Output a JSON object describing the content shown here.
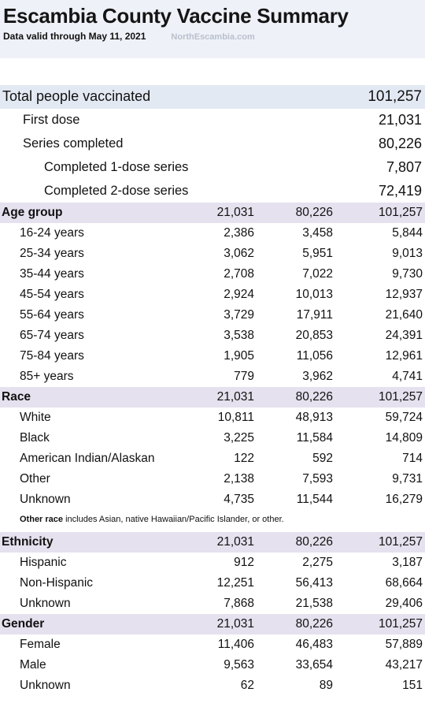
{
  "header": {
    "title": "Escambia County Vaccine Summary",
    "valid": "Data valid through May 11, 2021",
    "source": "NorthEscambia.com"
  },
  "summary": {
    "total": {
      "label": "Total people vaccinated",
      "value": "101,257"
    },
    "first": {
      "label": "First dose",
      "value": "21,031"
    },
    "series": {
      "label": "Series completed",
      "value": "80,226"
    },
    "one_dose": {
      "label": "Completed 1-dose series",
      "value": "7,807"
    },
    "two_dose": {
      "label": "Completed 2-dose series",
      "value": "72,419"
    }
  },
  "sections": {
    "age": {
      "title": "Age group",
      "c1": "21,031",
      "c2": "80,226",
      "c3": "101,257",
      "rows": [
        {
          "label": "16-24 years",
          "c1": "2,386",
          "c2": "3,458",
          "c3": "5,844"
        },
        {
          "label": "25-34 years",
          "c1": "3,062",
          "c2": "5,951",
          "c3": "9,013"
        },
        {
          "label": "35-44 years",
          "c1": "2,708",
          "c2": "7,022",
          "c3": "9,730"
        },
        {
          "label": "45-54 years",
          "c1": "2,924",
          "c2": "10,013",
          "c3": "12,937"
        },
        {
          "label": "55-64 years",
          "c1": "3,729",
          "c2": "17,911",
          "c3": "21,640"
        },
        {
          "label": "65-74 years",
          "c1": "3,538",
          "c2": "20,853",
          "c3": "24,391"
        },
        {
          "label": "75-84 years",
          "c1": "1,905",
          "c2": "11,056",
          "c3": "12,961"
        },
        {
          "label": "85+ years",
          "c1": "779",
          "c2": "3,962",
          "c3": "4,741"
        }
      ]
    },
    "race": {
      "title": "Race",
      "c1": "21,031",
      "c2": "80,226",
      "c3": "101,257",
      "rows": [
        {
          "label": "White",
          "c1": "10,811",
          "c2": "48,913",
          "c3": "59,724"
        },
        {
          "label": "Black",
          "c1": "3,225",
          "c2": "11,584",
          "c3": "14,809"
        },
        {
          "label": "American Indian/Alaskan",
          "c1": "122",
          "c2": "592",
          "c3": "714"
        },
        {
          "label": "Other",
          "c1": "2,138",
          "c2": "7,593",
          "c3": "9,731"
        },
        {
          "label": "Unknown",
          "c1": "4,735",
          "c2": "11,544",
          "c3": "16,279"
        }
      ],
      "note_bold": "Other race",
      "note_text": " includes Asian, native Hawaiian/Pacific Islander, or other."
    },
    "ethnicity": {
      "title": "Ethnicity",
      "c1": "21,031",
      "c2": "80,226",
      "c3": "101,257",
      "rows": [
        {
          "label": "Hispanic",
          "c1": "912",
          "c2": "2,275",
          "c3": "3,187"
        },
        {
          "label": "Non-Hispanic",
          "c1": "12,251",
          "c2": "56,413",
          "c3": "68,664"
        },
        {
          "label": "Unknown",
          "c1": "7,868",
          "c2": "21,538",
          "c3": "29,406"
        }
      ]
    },
    "gender": {
      "title": "Gender",
      "c1": "21,031",
      "c2": "80,226",
      "c3": "101,257",
      "rows": [
        {
          "label": "Female",
          "c1": "11,406",
          "c2": "46,483",
          "c3": "57,889"
        },
        {
          "label": "Male",
          "c1": "9,563",
          "c2": "33,654",
          "c3": "43,217"
        },
        {
          "label": "Unknown",
          "c1": "62",
          "c2": "89",
          "c3": "151"
        }
      ]
    }
  }
}
